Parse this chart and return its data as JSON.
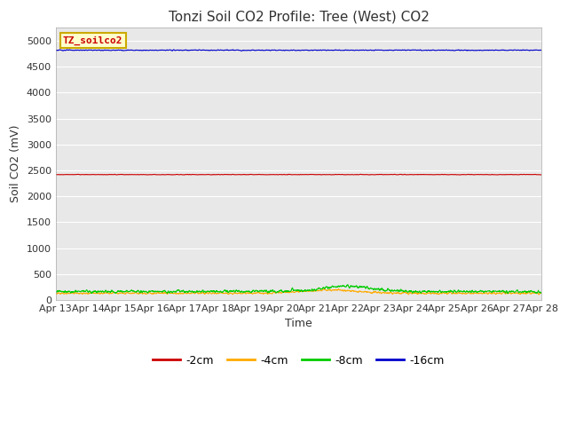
{
  "title": "Tonzi Soil CO2 Profile: Tree (West) CO2",
  "xlabel": "Time",
  "ylabel": "Soil CO2 (mV)",
  "legend_label": "TZ_soilco2",
  "series": {
    "-2cm": {
      "color": "#cc0000",
      "mean": 2420,
      "noise": 5,
      "label": "-2cm"
    },
    "-4cm": {
      "color": "#ffaa00",
      "mean": 130,
      "noise": 18,
      "label": "-4cm"
    },
    "-8cm": {
      "color": "#00cc00",
      "mean": 165,
      "noise": 28,
      "label": "-8cm"
    },
    "-16cm": {
      "color": "#0000cc",
      "mean": 4820,
      "noise": 8,
      "label": "-16cm"
    }
  },
  "xstart_day": 13,
  "xend_day": 28,
  "xtick_days": [
    13,
    14,
    15,
    16,
    17,
    18,
    19,
    20,
    21,
    22,
    23,
    24,
    25,
    26,
    27,
    28
  ],
  "ylim": [
    0,
    5250
  ],
  "yticks": [
    0,
    500,
    1000,
    1500,
    2000,
    2500,
    3000,
    3500,
    4000,
    4500,
    5000
  ],
  "fig_bg_color": "#ffffff",
  "plot_bg_color": "#e8e8e8",
  "grid_color": "#ffffff",
  "line_width": 0.8,
  "title_fontsize": 11,
  "axis_label_fontsize": 9,
  "tick_fontsize": 8,
  "legend_box_facecolor": "#ffffcc",
  "legend_box_edgecolor": "#ccaa00",
  "legend_text_color": "#cc0000",
  "n_points": 2000
}
